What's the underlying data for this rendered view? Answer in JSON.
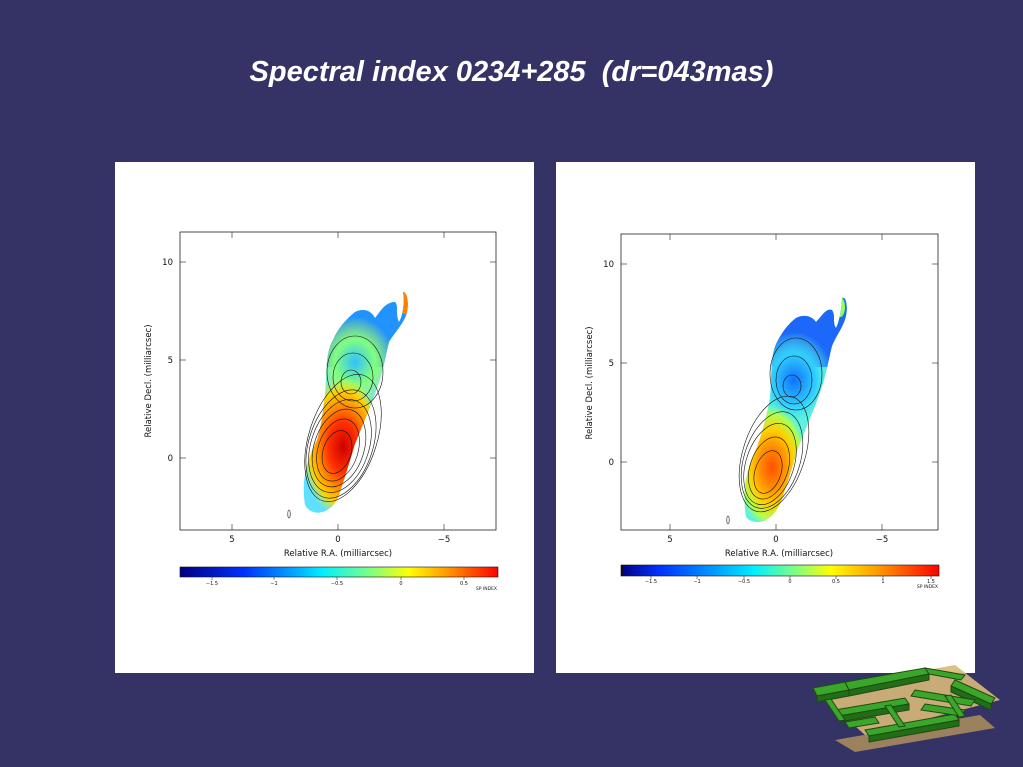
{
  "slide": {
    "title": "Spectral index 0234+285  (dr=043mas)"
  },
  "panels": [
    {
      "axes": {
        "xlabel": "Relative R.A. (milliarcsec)",
        "ylabel": "Relative Decl. (milliarcsec)",
        "x_ticks": [
          "5",
          "0",
          "−5"
        ],
        "y_ticks": [
          "10",
          "5",
          "0"
        ]
      },
      "colorbar": {
        "ticks": [
          "−1.5",
          "−1",
          "−0.5",
          "0",
          "0.5"
        ],
        "label": "SP INDEX"
      }
    },
    {
      "axes": {
        "xlabel": "Relative R.A. (milliarcsec)",
        "ylabel": "Relative Decl. (milliarcsec)",
        "x_ticks": [
          "5",
          "0",
          "−5"
        ],
        "y_ticks": [
          "10",
          "5",
          "0"
        ]
      },
      "colorbar": {
        "ticks": [
          "−1.5",
          "−1",
          "−0.5",
          "0",
          "0.5",
          "1",
          "1.5"
        ],
        "label": "SP INDEX"
      }
    }
  ],
  "colors": {
    "background": "#353366",
    "panel": "#ffffff",
    "title_text": "#ffffff",
    "colormap": [
      "#000080",
      "#0000ff",
      "#00a0ff",
      "#00ffff",
      "#60ff90",
      "#ffff00",
      "#ff8000",
      "#ff0000",
      "#a00000"
    ]
  },
  "decoration": {
    "logo_icon": "green-maze-icon"
  }
}
